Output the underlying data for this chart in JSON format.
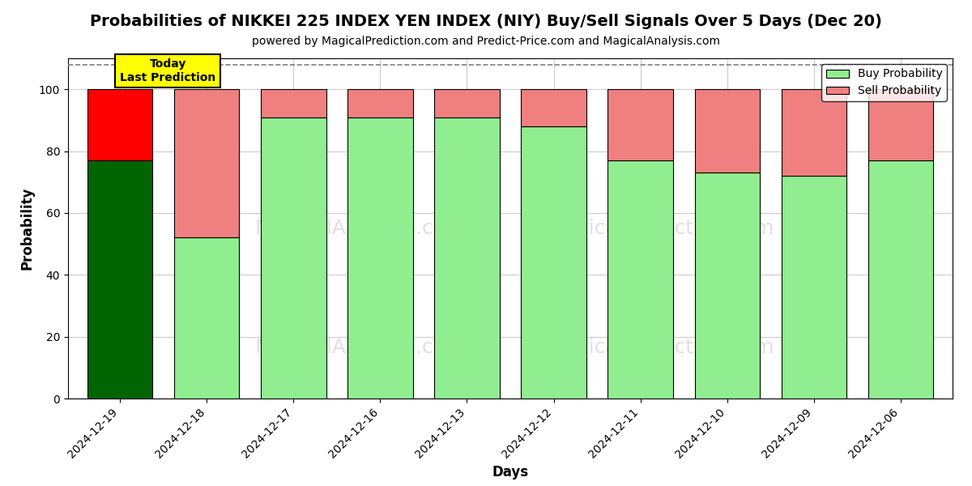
{
  "title": "Probabilities of NIKKEI 225 INDEX YEN INDEX (NIY) Buy/Sell Signals Over 5 Days (Dec 20)",
  "subtitle": "powered by MagicalPrediction.com and Predict-Price.com and MagicalAnalysis.com",
  "xlabel": "Days",
  "ylabel": "Probability",
  "dates": [
    "2024-12-19",
    "2024-12-18",
    "2024-12-17",
    "2024-12-16",
    "2024-12-13",
    "2024-12-12",
    "2024-12-11",
    "2024-12-10",
    "2024-12-09",
    "2024-12-06"
  ],
  "buy_values": [
    77,
    52,
    91,
    91,
    91,
    88,
    77,
    73,
    72,
    77
  ],
  "sell_values": [
    23,
    48,
    9,
    9,
    9,
    12,
    23,
    27,
    28,
    23
  ],
  "buy_colors": [
    "#006400",
    "#90EE90",
    "#90EE90",
    "#90EE90",
    "#90EE90",
    "#90EE90",
    "#90EE90",
    "#90EE90",
    "#90EE90",
    "#90EE90"
  ],
  "sell_colors": [
    "#FF0000",
    "#F08080",
    "#F08080",
    "#F08080",
    "#F08080",
    "#F08080",
    "#F08080",
    "#F08080",
    "#F08080",
    "#F08080"
  ],
  "legend_buy_color": "#90EE90",
  "legend_sell_color": "#F08080",
  "today_box_color": "#FFFF00",
  "today_label": "Today\nLast Prediction",
  "ylim": [
    0,
    110
  ],
  "dashed_line_y": 108,
  "background_color": "#ffffff",
  "grid_color": "#cccccc",
  "bar_edge_color": "#000000",
  "title_fontsize": 14,
  "subtitle_fontsize": 10,
  "axis_label_fontsize": 12,
  "tick_fontsize": 10
}
